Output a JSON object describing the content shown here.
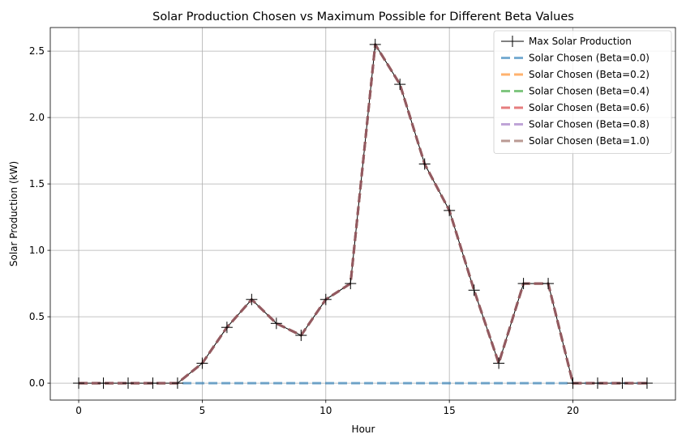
{
  "chart_data": {
    "type": "line",
    "title": "Solar Production Chosen vs Maximum Possible for Different Beta Values",
    "xlabel": "Hour",
    "ylabel": "Solar Production (kW)",
    "xlim": [
      -1.15,
      24.15
    ],
    "ylim": [
      -0.1275,
      2.6775
    ],
    "xticks": [
      0,
      5,
      10,
      15,
      20
    ],
    "yticks": [
      0.0,
      0.5,
      1.0,
      1.5,
      2.0,
      2.5
    ],
    "xtick_labels": [
      "0",
      "5",
      "10",
      "15",
      "20"
    ],
    "ytick_labels": [
      "0.0",
      "0.5",
      "1.0",
      "1.5",
      "2.0",
      "2.5"
    ],
    "grid": true,
    "legend_position": "top-right",
    "x": [
      0,
      1,
      2,
      3,
      4,
      5,
      6,
      7,
      8,
      9,
      10,
      11,
      12,
      13,
      14,
      15,
      16,
      17,
      18,
      19,
      20,
      21,
      22,
      23
    ],
    "series": [
      {
        "name": "Max Solar Production",
        "color": "#000000",
        "style": "solid",
        "marker": "plus",
        "values": [
          0,
          0,
          0,
          0,
          0,
          0.15,
          0.42,
          0.63,
          0.45,
          0.36,
          0.63,
          0.75,
          2.55,
          2.25,
          1.65,
          1.3,
          0.7,
          0.15,
          0.75,
          0.75,
          0,
          0,
          0,
          0
        ]
      },
      {
        "name": "Solar Chosen (Beta=0.0)",
        "color": "#1f77b4",
        "style": "dashed",
        "values": [
          0,
          0,
          0,
          0,
          0,
          0,
          0,
          0,
          0,
          0,
          0,
          0,
          0,
          0,
          0,
          0,
          0,
          0,
          0,
          0,
          0,
          0,
          0,
          0
        ]
      },
      {
        "name": "Solar Chosen (Beta=0.2)",
        "color": "#ff7f0e",
        "style": "dashed",
        "values": [
          0,
          0,
          0,
          0,
          0,
          0.15,
          0.42,
          0.63,
          0.45,
          0.36,
          0.63,
          0.75,
          2.55,
          2.25,
          1.65,
          1.3,
          0.7,
          0.15,
          0.75,
          0.75,
          0,
          0,
          0,
          0
        ]
      },
      {
        "name": "Solar Chosen (Beta=0.4)",
        "color": "#2ca02c",
        "style": "dashed",
        "values": [
          0,
          0,
          0,
          0,
          0,
          0.15,
          0.42,
          0.63,
          0.45,
          0.36,
          0.63,
          0.75,
          2.55,
          2.25,
          1.65,
          1.3,
          0.7,
          0.15,
          0.75,
          0.75,
          0,
          0,
          0,
          0
        ]
      },
      {
        "name": "Solar Chosen (Beta=0.6)",
        "color": "#d62728",
        "style": "dashed",
        "values": [
          0,
          0,
          0,
          0,
          0,
          0.15,
          0.42,
          0.63,
          0.45,
          0.36,
          0.63,
          0.75,
          2.55,
          2.25,
          1.65,
          1.3,
          0.7,
          0.15,
          0.75,
          0.75,
          0,
          0,
          0,
          0
        ]
      },
      {
        "name": "Solar Chosen (Beta=0.8)",
        "color": "#9467bd",
        "style": "dashed",
        "values": [
          0,
          0,
          0,
          0,
          0,
          0.15,
          0.42,
          0.63,
          0.45,
          0.36,
          0.63,
          0.75,
          2.55,
          2.25,
          1.65,
          1.3,
          0.7,
          0.15,
          0.75,
          0.75,
          0,
          0,
          0,
          0
        ]
      },
      {
        "name": "Solar Chosen (Beta=1.0)",
        "color": "#8c564b",
        "style": "dashed",
        "values": [
          0,
          0,
          0,
          0,
          0,
          0.15,
          0.42,
          0.63,
          0.45,
          0.36,
          0.63,
          0.75,
          2.55,
          2.25,
          1.65,
          1.3,
          0.7,
          0.15,
          0.75,
          0.75,
          0,
          0,
          0,
          0
        ]
      }
    ]
  }
}
